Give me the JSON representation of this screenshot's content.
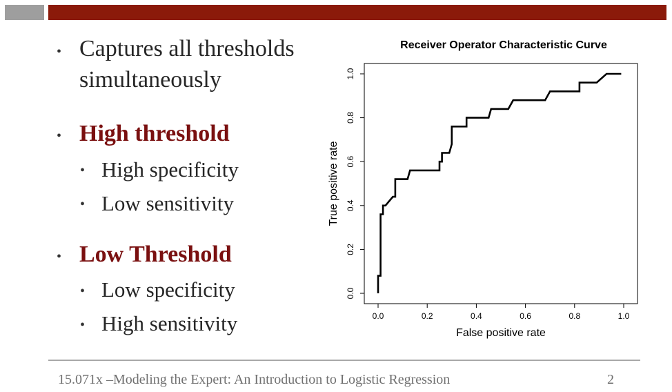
{
  "slide": {
    "bullets": [
      {
        "line1": "Captures all thresholds",
        "line2": "simultaneously"
      },
      {
        "text": "High threshold"
      },
      {
        "text": "High specificity"
      },
      {
        "text": "Low sensitivity"
      },
      {
        "text": "Low Threshold"
      },
      {
        "text": "Low specificity"
      },
      {
        "text": "High sensitivity"
      }
    ],
    "bullet_glyph": "•",
    "accent_color": "#8b1a0a",
    "heading_color": "#7a1010"
  },
  "chart_data": {
    "type": "line",
    "title": "Receiver Operator Characteristic Curve",
    "xlabel": "False positive rate",
    "ylabel": "True positive rate",
    "xlim": [
      0,
      1
    ],
    "ylim": [
      0,
      1
    ],
    "x_ticks": [
      "0.0",
      "0.2",
      "0.4",
      "0.6",
      "0.8",
      "1.0"
    ],
    "y_ticks": [
      "0.0",
      "0.2",
      "0.4",
      "0.6",
      "0.8",
      "1.0"
    ],
    "grid": false,
    "legend": "none",
    "series": [
      {
        "x": [
          0.0,
          0.0,
          0.01,
          0.01,
          0.02,
          0.02,
          0.03,
          0.03,
          0.06,
          0.07,
          0.07,
          0.12,
          0.13,
          0.25,
          0.25,
          0.26,
          0.26,
          0.29,
          0.3,
          0.3,
          0.36,
          0.36,
          0.45,
          0.46,
          0.53,
          0.55,
          0.68,
          0.7,
          0.82,
          0.82,
          0.89,
          0.93,
          0.99
        ],
        "y": [
          0.0,
          0.08,
          0.08,
          0.36,
          0.36,
          0.4,
          0.4,
          0.4,
          0.44,
          0.44,
          0.52,
          0.52,
          0.56,
          0.56,
          0.6,
          0.6,
          0.64,
          0.64,
          0.68,
          0.76,
          0.76,
          0.8,
          0.8,
          0.84,
          0.84,
          0.88,
          0.88,
          0.92,
          0.92,
          0.96,
          0.96,
          1.0,
          1.0
        ]
      }
    ]
  },
  "footer": {
    "course": "15.071x –Modeling the Expert: An Introduction to Logistic Regression",
    "page_number": "2"
  }
}
